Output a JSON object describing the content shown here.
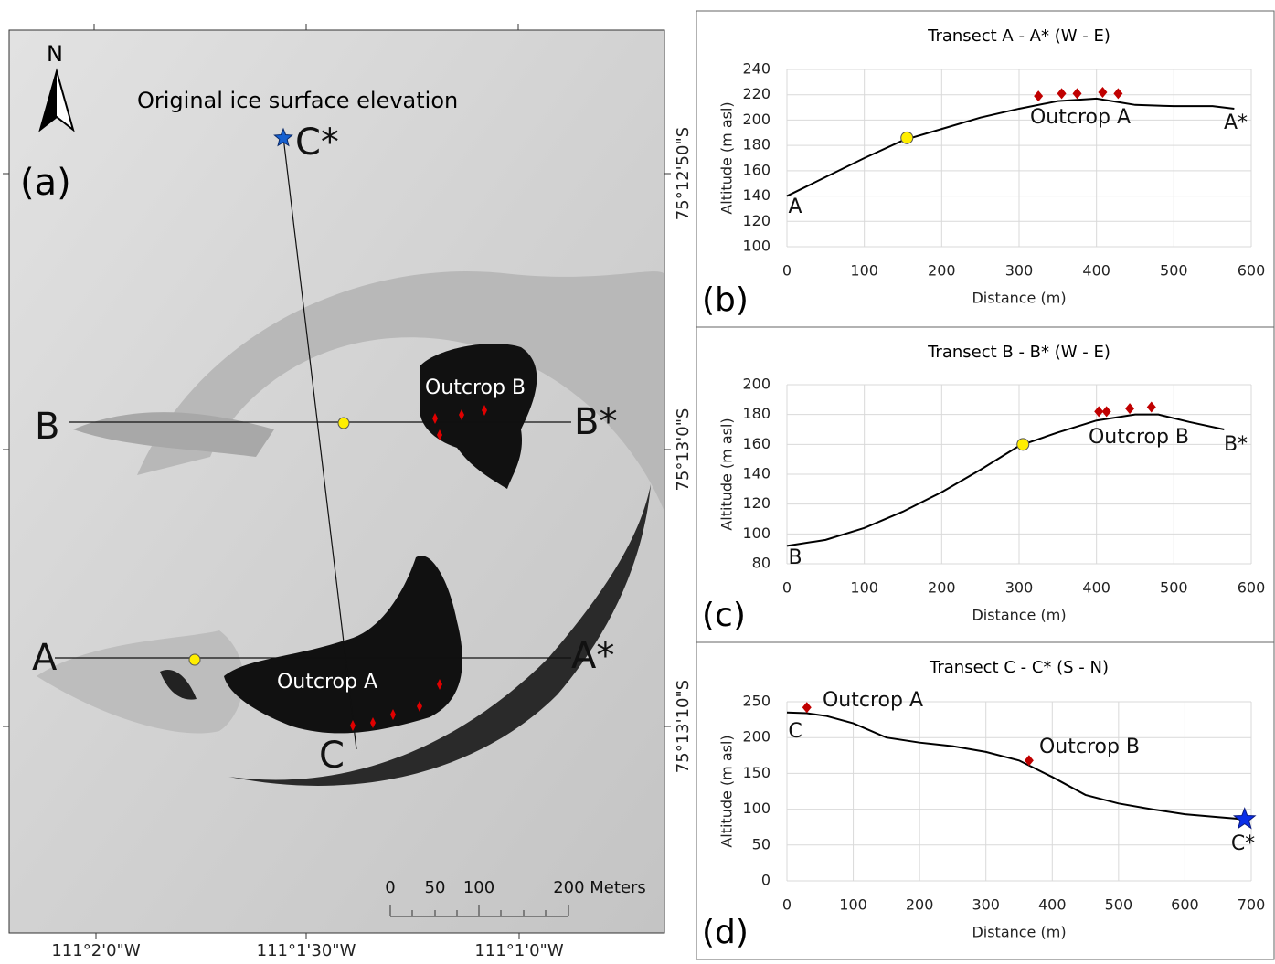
{
  "map": {
    "north": "N",
    "panel_label": "(a)",
    "title": "Original ice surface elevation",
    "transect_labels": [
      "C*",
      "B",
      "B*",
      "A",
      "A*",
      "C"
    ],
    "outcrops": [
      "Outcrop B",
      "Outcrop A"
    ],
    "scale_labels": [
      "0",
      "50",
      "100",
      "200 Meters"
    ],
    "longitudes": [
      "111°2'0\"W",
      "111°1'30\"W",
      "111°1'0\"W"
    ],
    "latitudes": [
      "75°12'50\"S",
      "75°13'0\"S",
      "75°13'10\"S"
    ]
  },
  "chart_data": [
    {
      "type": "line",
      "title": "Transect A - A* (W  - E)",
      "panel_label": "(b)",
      "x_label": "Distance (m)",
      "y_label": "Altitude (m asl)",
      "x": [
        0,
        50,
        100,
        150,
        200,
        250,
        300,
        350,
        400,
        430,
        450,
        500,
        550,
        578
      ],
      "values": [
        140,
        155,
        170,
        184,
        193,
        202,
        209,
        215,
        217,
        214,
        212,
        211,
        211,
        209
      ],
      "color": "#000000",
      "markers": [
        {
          "shape": "circle",
          "color": "#ffee00",
          "x": [
            155
          ],
          "values": [
            186
          ]
        },
        {
          "shape": "diamond",
          "color": "#c00000",
          "x": [
            325,
            355,
            375,
            408,
            428
          ],
          "values": [
            219,
            221,
            221,
            222,
            221
          ]
        }
      ],
      "annotations": [
        "Outcrop  A",
        "A",
        "A*"
      ],
      "xlim": [
        0,
        600
      ],
      "xticks": [
        0,
        100,
        200,
        300,
        400,
        500,
        600
      ],
      "ylim": [
        100,
        240
      ],
      "yticks": [
        100,
        120,
        140,
        160,
        180,
        200,
        220,
        240
      ],
      "grid": true
    },
    {
      "type": "line",
      "title": "Transect B - B* (W - E)",
      "panel_label": "(c)",
      "x_label": "Distance (m)",
      "y_label": "Altitude (m asl)",
      "x": [
        0,
        50,
        100,
        150,
        200,
        250,
        300,
        350,
        400,
        450,
        480,
        520,
        565
      ],
      "values": [
        92,
        96,
        104,
        115,
        128,
        143,
        159,
        168,
        176,
        180,
        180,
        175,
        170
      ],
      "color": "#000000",
      "markers": [
        {
          "shape": "circle",
          "color": "#ffee00",
          "x": [
            305
          ],
          "values": [
            160
          ]
        },
        {
          "shape": "diamond",
          "color": "#c00000",
          "x": [
            403,
            413,
            443,
            471
          ],
          "values": [
            182,
            182,
            184,
            185
          ]
        }
      ],
      "annotations": [
        "Outcrop  B",
        "B",
        "B*"
      ],
      "xlim": [
        0,
        600
      ],
      "xticks": [
        0,
        100,
        200,
        300,
        400,
        500,
        600
      ],
      "ylim": [
        80,
        200
      ],
      "yticks": [
        80,
        100,
        120,
        140,
        160,
        180,
        200
      ],
      "grid": true
    },
    {
      "type": "line",
      "title": "Transect C - C* (S - N)",
      "panel_label": "(d)",
      "x_label": "Distance (m)",
      "y_label": "Altitude (m asl)",
      "x": [
        0,
        30,
        60,
        100,
        150,
        200,
        250,
        300,
        350,
        400,
        450,
        500,
        550,
        600,
        650,
        690
      ],
      "values": [
        235,
        234,
        230,
        220,
        200,
        193,
        188,
        180,
        168,
        145,
        120,
        108,
        100,
        93,
        89,
        86
      ],
      "color": "#000000",
      "markers": [
        {
          "shape": "diamond",
          "color": "#c00000",
          "x": [
            30,
            365
          ],
          "values": [
            242,
            168
          ]
        },
        {
          "shape": "star",
          "color": "#0a2ee8",
          "x": [
            690
          ],
          "values": [
            86
          ]
        }
      ],
      "annotations": [
        "Outcrop  A",
        "Outcrop  B",
        "C",
        "C*"
      ],
      "xlim": [
        0,
        700
      ],
      "xticks": [
        0,
        100,
        200,
        300,
        400,
        500,
        600,
        700
      ],
      "ylim": [
        0,
        250
      ],
      "yticks": [
        0,
        50,
        100,
        150,
        200,
        250
      ],
      "grid": true
    }
  ]
}
